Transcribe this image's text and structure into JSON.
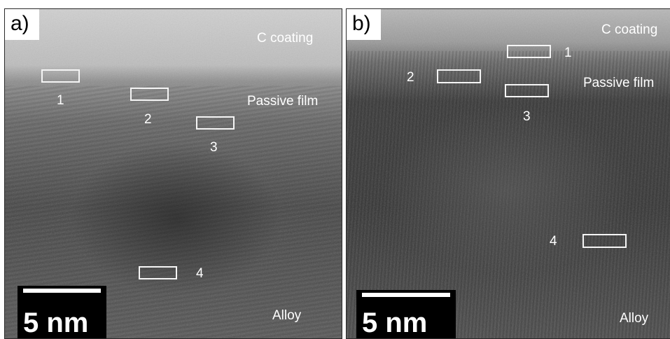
{
  "panels": [
    {
      "label": "a)",
      "coating_label": "C coating",
      "film_label": "Passive film",
      "alloy_label": "Alloy",
      "scale_bar_label": "5 nm",
      "regions": [
        "1",
        "2",
        "3",
        "4"
      ]
    },
    {
      "label": "b)",
      "coating_label": "C coating",
      "film_label": "Passive film",
      "alloy_label": "Alloy",
      "scale_bar_label": "5 nm",
      "regions": [
        "1",
        "2",
        "3",
        "4"
      ]
    }
  ],
  "colors": {
    "coating": "#c9c9c9",
    "passive_film": "#8a8a8a",
    "alloy": "#4b4b4b",
    "annotation": "#ffffff"
  }
}
